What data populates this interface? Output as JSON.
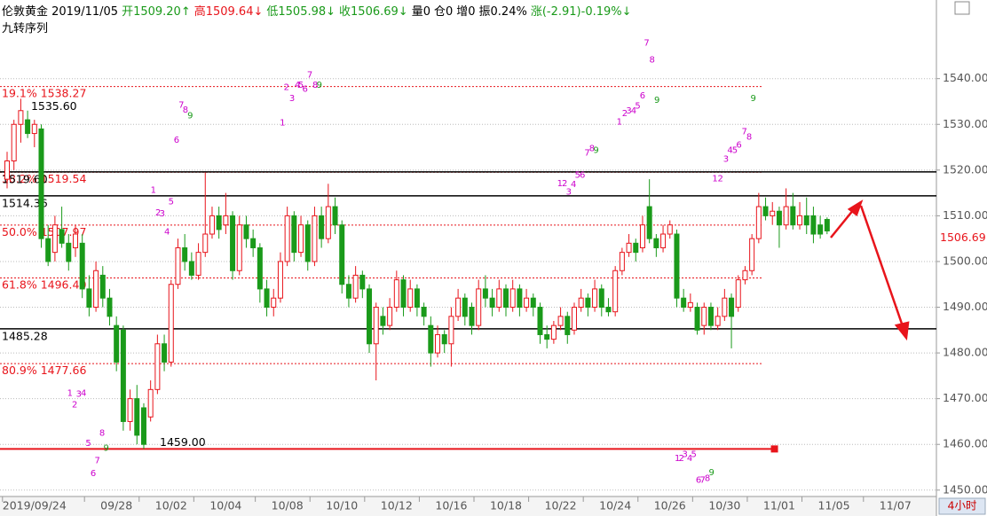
{
  "chart_data": {
    "type": "candlestick",
    "header": [
      {
        "text": "伦敦黄金 2019/11/05",
        "color": "#000000"
      },
      {
        "text": "开1509.20↑",
        "color": "#1a9a1a"
      },
      {
        "text": "高1509.64↓",
        "color": "#e8141b"
      },
      {
        "text": "低1505.98↓",
        "color": "#1a9a1a"
      },
      {
        "text": "收1506.69↓",
        "color": "#1a9a1a"
      },
      {
        "text": "量0",
        "color": "#000000"
      },
      {
        "text": "仓0",
        "color": "#000000"
      },
      {
        "text": "增0",
        "color": "#000000"
      },
      {
        "text": "振0.24%",
        "color": "#000000"
      },
      {
        "text": "涨(-2.91)-0.19%↓",
        "color": "#1a9a1a"
      }
    ],
    "subtitle": "九转序列",
    "period": "4小时",
    "up_color": "#e8141b",
    "down_color": "#1a9a1a",
    "xlim": [
      -1.04,
      136
    ],
    "ylim": [
      1448.6,
      1557.2
    ],
    "grid": true,
    "yticks": [
      {
        "value": 1450,
        "label": "1450.00"
      },
      {
        "value": 1460,
        "label": "1460.00"
      },
      {
        "value": 1470,
        "label": "1470.00"
      },
      {
        "value": 1480,
        "label": "1480.00"
      },
      {
        "value": 1490,
        "label": "1490.00"
      },
      {
        "value": 1500,
        "label": "1500.00"
      },
      {
        "value": 1510,
        "label": "1510.00"
      },
      {
        "value": 1520,
        "label": "1520.00"
      },
      {
        "value": 1530,
        "label": "1530.00"
      },
      {
        "value": 1540,
        "label": "1540.00"
      }
    ],
    "xticks": [
      {
        "value": 4,
        "label": "2019/09/24"
      },
      {
        "value": 16,
        "label": "09/28"
      },
      {
        "value": 24,
        "label": "10/02"
      },
      {
        "value": 32,
        "label": "10/04"
      },
      {
        "value": 41,
        "label": "10/08"
      },
      {
        "value": 49,
        "label": "10/10"
      },
      {
        "value": 57,
        "label": "10/12"
      },
      {
        "value": 65,
        "label": "10/16"
      },
      {
        "value": 73,
        "label": "10/18"
      },
      {
        "value": 81,
        "label": "10/22"
      },
      {
        "value": 89,
        "label": "10/24"
      },
      {
        "value": 97,
        "label": "10/26"
      },
      {
        "value": 105,
        "label": "10/30"
      },
      {
        "value": 113,
        "label": "11/01"
      },
      {
        "value": 121,
        "label": "11/05"
      },
      {
        "value": 130,
        "label": "11/07"
      }
    ],
    "open": [
      1518,
      1522,
      1530,
      1531,
      1528,
      1529,
      1505,
      1502,
      1507,
      1504,
      1503,
      1504,
      1494,
      1490,
      1497,
      1492,
      1486,
      1485,
      1465,
      1470,
      1468,
      1466,
      1472,
      1482,
      1478,
      1495,
      1503,
      1500,
      1497,
      1502,
      1506,
      1510,
      1508,
      1510,
      1498,
      1508,
      1505,
      1503,
      1494,
      1490,
      1492,
      1500,
      1510,
      1502,
      1508,
      1500,
      1510,
      1505,
      1512,
      1508,
      1495,
      1492,
      1497,
      1494,
      1482,
      1488,
      1486,
      1490,
      1496,
      1490,
      1494,
      1490,
      1486,
      1480,
      1484,
      1482,
      1488,
      1492,
      1490,
      1486,
      1494,
      1492,
      1490,
      1494,
      1490,
      1494,
      1490,
      1492,
      1490,
      1484,
      1483,
      1486,
      1488,
      1485,
      1490,
      1492,
      1490,
      1494,
      1490,
      1489,
      1498,
      1502,
      1504,
      1503,
      1512,
      1505,
      1503,
      1506,
      1506,
      1492,
      1490,
      1490,
      1486,
      1490,
      1486,
      1488,
      1492,
      1490,
      1496,
      1498,
      1505,
      1512,
      1510,
      1511,
      1508,
      1512,
      1508,
      1510,
      1510,
      1508,
      1509.2
    ],
    "high": [
      1524,
      1531,
      1535.6,
      1533,
      1531,
      1530,
      1508,
      1510,
      1512,
      1506,
      1508,
      1506,
      1497,
      1500,
      1499,
      1494,
      1488,
      1486,
      1472,
      1473,
      1469,
      1474,
      1484,
      1484,
      1496,
      1505,
      1506,
      1502,
      1504,
      1519.5,
      1512,
      1512,
      1515,
      1511,
      1510,
      1510,
      1507,
      1504,
      1496,
      1494,
      1502,
      1512,
      1511,
      1510,
      1509,
      1512,
      1512,
      1517,
      1514,
      1509,
      1497,
      1499,
      1498,
      1495,
      1491,
      1490,
      1492,
      1498,
      1497,
      1496,
      1495,
      1491,
      1488,
      1486,
      1485,
      1490,
      1494,
      1493,
      1491,
      1496,
      1497,
      1494,
      1496,
      1495,
      1496,
      1495,
      1494,
      1493,
      1491,
      1486,
      1487,
      1490,
      1489,
      1491,
      1494,
      1493,
      1496,
      1495,
      1492,
      1499,
      1503,
      1506,
      1505,
      1510,
      1518,
      1506,
      1508,
      1509,
      1507,
      1494,
      1493,
      1491,
      1491,
      1491,
      1490,
      1494,
      1493,
      1497,
      1499,
      1506,
      1515,
      1514,
      1513,
      1512,
      1516,
      1515,
      1513,
      1514,
      1512,
      1510,
      1509.64
    ],
    "low": [
      1516,
      1520,
      1526,
      1527,
      1525,
      1503,
      1499,
      1500,
      1503,
      1498,
      1501,
      1492,
      1488,
      1489,
      1490,
      1486,
      1476,
      1463,
      1463,
      1460,
      1459,
      1465,
      1471,
      1476,
      1477,
      1494,
      1498,
      1496,
      1496,
      1501,
      1505,
      1505,
      1506,
      1496,
      1497,
      1503,
      1501,
      1491,
      1488,
      1488,
      1491,
      1499,
      1500,
      1501,
      1498,
      1499,
      1503,
      1504,
      1506,
      1493,
      1490,
      1491,
      1492,
      1480,
      1474,
      1484,
      1485,
      1489,
      1488,
      1489,
      1488,
      1486,
      1477,
      1479,
      1480,
      1477,
      1487,
      1486,
      1484,
      1485,
      1490,
      1488,
      1489,
      1488,
      1489,
      1488,
      1489,
      1488,
      1482,
      1481,
      1482,
      1485,
      1482,
      1484,
      1489,
      1488,
      1489,
      1488,
      1488,
      1488,
      1497,
      1501,
      1500,
      1502,
      1504,
      1501,
      1502,
      1505,
      1490,
      1489,
      1489,
      1484,
      1484,
      1485,
      1485,
      1487,
      1481,
      1489,
      1495,
      1497,
      1504,
      1509,
      1508,
      1503,
      1507,
      1507,
      1507,
      1506,
      1504,
      1505,
      1505.98
    ],
    "close": [
      1522,
      1530,
      1533,
      1528,
      1530,
      1505,
      1500,
      1508,
      1504,
      1500,
      1506,
      1494,
      1490,
      1498,
      1492,
      1488,
      1478,
      1465,
      1470,
      1462,
      1460,
      1472,
      1482,
      1478,
      1495,
      1503,
      1500,
      1497,
      1502,
      1506,
      1510,
      1507,
      1510,
      1498,
      1508,
      1505,
      1503,
      1494,
      1490,
      1492,
      1500,
      1510,
      1502,
      1508,
      1500,
      1510,
      1505,
      1512,
      1508,
      1495,
      1492,
      1497,
      1494,
      1482,
      1490,
      1486,
      1490,
      1496,
      1490,
      1494,
      1490,
      1488,
      1480,
      1484,
      1482,
      1488,
      1492,
      1488,
      1486,
      1494,
      1492,
      1490,
      1494,
      1490,
      1494,
      1490,
      1492,
      1490,
      1484,
      1483,
      1486,
      1488,
      1484,
      1490,
      1492,
      1490,
      1494,
      1490,
      1489,
      1498,
      1502,
      1504,
      1502,
      1508,
      1505,
      1503,
      1506,
      1508,
      1492,
      1490,
      1491,
      1485,
      1490,
      1486,
      1488,
      1492,
      1488,
      1496,
      1498,
      1505,
      1512,
      1510,
      1511,
      1508,
      1512,
      1508,
      1510,
      1508,
      1506,
      1506,
      1506.69
    ],
    "fib_color": "#e8141b",
    "fib_levels": [
      {
        "ratio": "19.1%",
        "value": 1538.27
      },
      {
        "ratio": "38.2%",
        "value": 1519.54
      },
      {
        "ratio": "50.0%",
        "value": 1507.97
      },
      {
        "ratio": "61.8%",
        "value": 1496.4,
        "label": "1496.40"
      },
      {
        "ratio": "80.9%",
        "value": 1477.66
      }
    ],
    "levels": [
      {
        "value": 1519.6,
        "label": "1519.60"
      },
      {
        "value": 1514.36
      },
      {
        "value": 1485.28
      }
    ],
    "support": {
      "value": 1459,
      "label": "1459.00",
      "x_end": 112.3,
      "color": "#e8141b"
    },
    "high_annotation": {
      "value": 1535.6,
      "label": "1535.60",
      "x": 3.5
    },
    "td_color": "#cc00cc",
    "td_labels": [
      {
        "text": "1",
        "x": 40.3,
        "y": 1530.3
      },
      {
        "text": "2",
        "x": 40.9,
        "y": 1538.1
      },
      {
        "text": "3",
        "x": 41.7,
        "y": 1535.7
      },
      {
        "text": "4",
        "x": 42.5,
        "y": 1538.6
      },
      {
        "text": "5",
        "x": 43.0,
        "y": 1538.6
      },
      {
        "text": "6",
        "x": 43.6,
        "y": 1537.7
      },
      {
        "text": "7",
        "x": 44.3,
        "y": 1540.8
      },
      {
        "text": "8",
        "x": 45.1,
        "y": 1538.6
      },
      {
        "text": "9",
        "x": 45.7,
        "y": 1538.6,
        "color": "#1a9a1a"
      },
      {
        "text": "6",
        "x": 24.8,
        "y": 1526.6
      },
      {
        "text": "7",
        "x": 25.5,
        "y": 1534.2
      },
      {
        "text": "8",
        "x": 26.1,
        "y": 1533.2
      },
      {
        "text": "9",
        "x": 26.8,
        "y": 1531.9,
        "color": "#1a9a1a"
      },
      {
        "text": "1",
        "x": 9.2,
        "y": 1471.2
      },
      {
        "text": "2",
        "x": 9.9,
        "y": 1468.7
      },
      {
        "text": "3",
        "x": 10.5,
        "y": 1471.0
      },
      {
        "text": "4",
        "x": 11.2,
        "y": 1471.2
      },
      {
        "text": "5",
        "x": 11.9,
        "y": 1460.2
      },
      {
        "text": "6",
        "x": 12.6,
        "y": 1453.6
      },
      {
        "text": "7",
        "x": 13.2,
        "y": 1456.5
      },
      {
        "text": "8",
        "x": 13.9,
        "y": 1462.5
      },
      {
        "text": "9",
        "x": 14.5,
        "y": 1459.2,
        "color": "#1a9a1a"
      },
      {
        "text": "1",
        "x": 21.4,
        "y": 1515.6
      },
      {
        "text": "2",
        "x": 22.1,
        "y": 1510.7
      },
      {
        "text": "3",
        "x": 22.7,
        "y": 1510.5
      },
      {
        "text": "4",
        "x": 23.4,
        "y": 1506.5
      },
      {
        "text": "5",
        "x": 24.0,
        "y": 1513.1
      },
      {
        "text": "1",
        "x": 80.9,
        "y": 1517.1
      },
      {
        "text": "2",
        "x": 81.6,
        "y": 1517.1
      },
      {
        "text": "3",
        "x": 82.2,
        "y": 1515.2
      },
      {
        "text": "4",
        "x": 82.9,
        "y": 1516.9
      },
      {
        "text": "5",
        "x": 83.5,
        "y": 1518.9
      },
      {
        "text": "6",
        "x": 84.2,
        "y": 1518.9
      },
      {
        "text": "7",
        "x": 84.9,
        "y": 1523.7
      },
      {
        "text": "8",
        "x": 85.6,
        "y": 1524.7
      },
      {
        "text": "9",
        "x": 86.2,
        "y": 1524.3,
        "color": "#1a9a1a"
      },
      {
        "text": "1",
        "x": 89.6,
        "y": 1530.5
      },
      {
        "text": "2",
        "x": 90.4,
        "y": 1532.4
      },
      {
        "text": "3",
        "x": 91.0,
        "y": 1533.0
      },
      {
        "text": "4",
        "x": 91.7,
        "y": 1533.0
      },
      {
        "text": "5",
        "x": 92.3,
        "y": 1534.0
      },
      {
        "text": "6",
        "x": 93.0,
        "y": 1536.3
      },
      {
        "text": "7",
        "x": 93.6,
        "y": 1547.8
      },
      {
        "text": "8",
        "x": 94.4,
        "y": 1544.1
      },
      {
        "text": "9",
        "x": 95.1,
        "y": 1535.3,
        "color": "#1a9a1a"
      },
      {
        "text": "1",
        "x": 103.6,
        "y": 1518.1
      },
      {
        "text": "2",
        "x": 104.4,
        "y": 1518.1
      },
      {
        "text": "3",
        "x": 105.2,
        "y": 1522.4
      },
      {
        "text": "4",
        "x": 105.8,
        "y": 1524.3
      },
      {
        "text": "5",
        "x": 106.5,
        "y": 1524.3
      },
      {
        "text": "6",
        "x": 107.1,
        "y": 1525.5
      },
      {
        "text": "7",
        "x": 107.9,
        "y": 1528.4
      },
      {
        "text": "8",
        "x": 108.6,
        "y": 1527.2
      },
      {
        "text": "9",
        "x": 109.2,
        "y": 1535.7,
        "color": "#1a9a1a"
      },
      {
        "text": "1",
        "x": 98.1,
        "y": 1456.9
      },
      {
        "text": "2",
        "x": 98.7,
        "y": 1456.9
      },
      {
        "text": "3",
        "x": 99.2,
        "y": 1457.8
      },
      {
        "text": "4",
        "x": 99.9,
        "y": 1456.9
      },
      {
        "text": "5",
        "x": 100.5,
        "y": 1457.8
      },
      {
        "text": "6",
        "x": 101.2,
        "y": 1452.2
      },
      {
        "text": "7",
        "x": 101.8,
        "y": 1452.2
      },
      {
        "text": "8",
        "x": 102.5,
        "y": 1452.6
      },
      {
        "text": "9",
        "x": 103.1,
        "y": 1453.8,
        "color": "#1a9a1a"
      }
    ]
  }
}
